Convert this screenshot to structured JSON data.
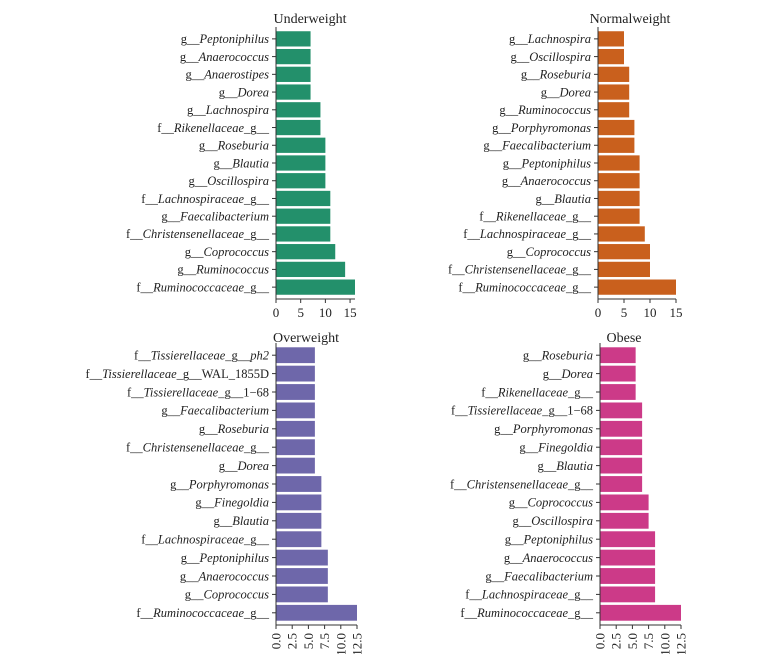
{
  "chart_data": [
    {
      "type": "bar",
      "orientation": "horizontal",
      "title": "Underweight",
      "color": "#23906b",
      "xlim": [
        0,
        16
      ],
      "xticks": [
        "0",
        "5",
        "10",
        "15"
      ],
      "xtick_values": [
        0,
        5,
        10,
        15
      ],
      "categories": [
        "g__Peptoniphilus",
        "g__Anaerococcus",
        "g__Anaerostipes",
        "g__Dorea",
        "g__Lachnospira",
        "f__Rikenellaceae_g__",
        "g__Roseburia",
        "g__Blautia",
        "g__Oscillospira",
        "f__Lachnospiraceae_g__",
        "g__Faecalibacterium",
        "f__Christensenellaceae_g__",
        "g__Coprococcus",
        "g__Ruminococcus",
        "f__Ruminococcaceae_g__"
      ],
      "values": [
        7,
        7,
        7,
        7,
        9,
        9,
        10,
        10,
        10,
        11,
        11,
        11,
        12,
        14,
        16
      ],
      "labels": [
        {
          "pre": "g__",
          "it": "Peptoniphilus",
          "post": ""
        },
        {
          "pre": "g__",
          "it": "Anaerococcus",
          "post": ""
        },
        {
          "pre": "g__",
          "it": "Anaerostipes",
          "post": ""
        },
        {
          "pre": "g__",
          "it": "Dorea",
          "post": ""
        },
        {
          "pre": "g__",
          "it": "Lachnospira",
          "post": ""
        },
        {
          "pre": "f__",
          "it": "Rikenellaceae",
          "post": "_g__"
        },
        {
          "pre": "g__",
          "it": "Roseburia",
          "post": ""
        },
        {
          "pre": "g__",
          "it": "Blautia",
          "post": ""
        },
        {
          "pre": "g__",
          "it": "Oscillospira",
          "post": ""
        },
        {
          "pre": "f__",
          "it": "Lachnospiraceae",
          "post": "_g__"
        },
        {
          "pre": "g__",
          "it": "Faecalibacterium",
          "post": ""
        },
        {
          "pre": "f__",
          "it": "Christensenellaceae",
          "post": "_g__"
        },
        {
          "pre": "g__",
          "it": "Coprococcus",
          "post": ""
        },
        {
          "pre": "g__",
          "it": "Ruminococcus",
          "post": ""
        },
        {
          "pre": "f__",
          "it": "Ruminococcaceae",
          "post": "_g__"
        }
      ]
    },
    {
      "type": "bar",
      "orientation": "horizontal",
      "title": "Normalweight",
      "color": "#c9601d",
      "xlim": [
        0,
        15
      ],
      "xticks": [
        "0",
        "5",
        "10",
        "15"
      ],
      "xtick_values": [
        0,
        5,
        10,
        15
      ],
      "categories": [
        "g__Lachnospira",
        "g__Oscillospira",
        "g__Roseburia",
        "g__Dorea",
        "g__Ruminococcus",
        "g__Porphyromonas",
        "g__Faecalibacterium",
        "g__Peptoniphilus",
        "g__Anaerococcus",
        "g__Blautia",
        "f__Rikenellaceae_g__",
        "f__Lachnospiraceae_g__",
        "g__Coprococcus",
        "f__Christensenellaceae_g__",
        "f__Ruminococcaceae_g__"
      ],
      "values": [
        5,
        5,
        6,
        6,
        6,
        7,
        7,
        8,
        8,
        8,
        8,
        9,
        10,
        10,
        15
      ],
      "labels": [
        {
          "pre": "g__",
          "it": "Lachnospira",
          "post": ""
        },
        {
          "pre": "g__",
          "it": "Oscillospira",
          "post": ""
        },
        {
          "pre": "g__",
          "it": "Roseburia",
          "post": ""
        },
        {
          "pre": "g__",
          "it": "Dorea",
          "post": ""
        },
        {
          "pre": "g__",
          "it": "Ruminococcus",
          "post": ""
        },
        {
          "pre": "g__",
          "it": "Porphyromonas",
          "post": ""
        },
        {
          "pre": "g__",
          "it": "Faecalibacterium",
          "post": ""
        },
        {
          "pre": "g__",
          "it": "Peptoniphilus",
          "post": ""
        },
        {
          "pre": "g__",
          "it": "Anaerococcus",
          "post": ""
        },
        {
          "pre": "g__",
          "it": "Blautia",
          "post": ""
        },
        {
          "pre": "f__",
          "it": "Rikenellaceae",
          "post": "_g__"
        },
        {
          "pre": "f__",
          "it": "Lachnospiraceae",
          "post": "_g__"
        },
        {
          "pre": "g__",
          "it": "Coprococcus",
          "post": ""
        },
        {
          "pre": "f__",
          "it": "Christensenellaceae",
          "post": "_g__"
        },
        {
          "pre": "f__",
          "it": "Ruminococcaceae",
          "post": "_g__"
        }
      ]
    },
    {
      "type": "bar",
      "orientation": "horizontal",
      "title": "Overweight",
      "color": "#6e67aa",
      "xlim": [
        0,
        12.5
      ],
      "xticks": [
        "0.0",
        "2.5",
        "5.0",
        "7.5",
        "10.0",
        "12.5"
      ],
      "xtick_values": [
        0,
        2.5,
        5,
        7.5,
        10,
        12.5
      ],
      "categories": [
        "f__Tissierellaceae_g__ph2",
        "f__Tissierellaceae_g__WAL_1855D",
        "f__Tissierellaceae_g__1−68",
        "g__Faecalibacterium",
        "g__Roseburia",
        "f__Christensenellaceae_g__",
        "g__Dorea",
        "g__Porphyromonas",
        "g__Finegoldia",
        "g__Blautia",
        "f__Lachnospiraceae_g__",
        "g__Peptoniphilus",
        "g__Anaerococcus",
        "g__Coprococcus",
        "f__Ruminococcaceae_g__"
      ],
      "values": [
        6,
        6,
        6,
        6,
        6,
        6,
        6,
        7,
        7,
        7,
        7,
        8,
        8,
        8,
        12.5
      ],
      "labels": [
        {
          "pre": "f__",
          "it": "Tissierellaceae",
          "post": "_g__",
          "it2": "ph2"
        },
        {
          "pre": "f__",
          "it": "Tissierellaceae",
          "post": "_g__WAL_1855D"
        },
        {
          "pre": "f__",
          "it": "Tissierellaceae",
          "post": "_g__1−68"
        },
        {
          "pre": "g__",
          "it": "Faecalibacterium",
          "post": ""
        },
        {
          "pre": "g__",
          "it": "Roseburia",
          "post": ""
        },
        {
          "pre": "f__",
          "it": "Christensenellaceae",
          "post": "_g__"
        },
        {
          "pre": "g__",
          "it": "Dorea",
          "post": ""
        },
        {
          "pre": "g__",
          "it": "Porphyromonas",
          "post": ""
        },
        {
          "pre": "g__",
          "it": "Finegoldia",
          "post": ""
        },
        {
          "pre": "g__",
          "it": "Blautia",
          "post": ""
        },
        {
          "pre": "f__",
          "it": "Lachnospiraceae",
          "post": "_g__"
        },
        {
          "pre": "g__",
          "it": "Peptoniphilus",
          "post": ""
        },
        {
          "pre": "g__",
          "it": "Anaerococcus",
          "post": ""
        },
        {
          "pre": "g__",
          "it": "Coprococcus",
          "post": ""
        },
        {
          "pre": "f__",
          "it": "Ruminococcaceae",
          "post": "_g__"
        }
      ]
    },
    {
      "type": "bar",
      "orientation": "horizontal",
      "title": "Obese",
      "color": "#cc3a88",
      "xlim": [
        0,
        12.5
      ],
      "xticks": [
        "0.0",
        "2.5",
        "5.0",
        "7.5",
        "10.0",
        "12.5"
      ],
      "xtick_values": [
        0,
        2.5,
        5,
        7.5,
        10,
        12.5
      ],
      "categories": [
        "g__Roseburia",
        "g__Dorea",
        "f__Rikenellaceae_g__",
        "f__Tissierellaceae_g__1−68",
        "g__Porphyromonas",
        "g__Finegoldia",
        "g__Blautia",
        "f__Christensenellaceae_g__",
        "g__Coprococcus",
        "g__Oscillospira",
        "g__Peptoniphilus",
        "g__Anaerococcus",
        "g__Faecalibacterium",
        "f__Lachnospiraceae_g__",
        "f__Ruminococcaceae_g__"
      ],
      "values": [
        5.5,
        5.5,
        5.5,
        6.5,
        6.5,
        6.5,
        6.5,
        6.5,
        7.5,
        7.5,
        8.5,
        8.5,
        8.5,
        8.5,
        12.5
      ],
      "labels": [
        {
          "pre": "g__",
          "it": "Roseburia",
          "post": ""
        },
        {
          "pre": "g__",
          "it": "Dorea",
          "post": ""
        },
        {
          "pre": "f__",
          "it": "Rikenellaceae",
          "post": "_g__"
        },
        {
          "pre": "f__",
          "it": "Tissierellaceae",
          "post": "_g__1−68"
        },
        {
          "pre": "g__",
          "it": "Porphyromonas",
          "post": ""
        },
        {
          "pre": "g__",
          "it": "Finegoldia",
          "post": ""
        },
        {
          "pre": "g__",
          "it": "Blautia",
          "post": ""
        },
        {
          "pre": "f__",
          "it": "Christensenellaceae",
          "post": "_g__"
        },
        {
          "pre": "g__",
          "it": "Coprococcus",
          "post": ""
        },
        {
          "pre": "g__",
          "it": "Oscillospira",
          "post": ""
        },
        {
          "pre": "g__",
          "it": "Peptoniphilus",
          "post": ""
        },
        {
          "pre": "g__",
          "it": "Anaerococcus",
          "post": ""
        },
        {
          "pre": "g__",
          "it": "Faecalibacterium",
          "post": ""
        },
        {
          "pre": "f__",
          "it": "Lachnospiraceae",
          "post": "_g__"
        },
        {
          "pre": "f__",
          "it": "Ruminococcaceae",
          "post": "_g__"
        }
      ]
    }
  ]
}
